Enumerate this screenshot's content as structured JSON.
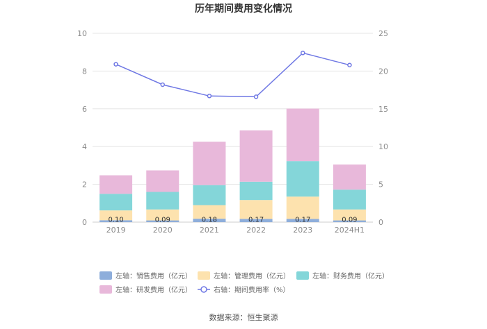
{
  "chart_data": {
    "type": "bar",
    "stacked": true,
    "title": "历年期间费用变化情况",
    "categories": [
      "2019",
      "2020",
      "2021",
      "2022",
      "2023",
      "2024H1"
    ],
    "left_axis": {
      "ylim": [
        0,
        10
      ],
      "ticks": [
        "0",
        "2",
        "4",
        "6",
        "8",
        "10"
      ]
    },
    "right_axis": {
      "ylim": [
        0,
        25
      ],
      "ticks": [
        "0",
        "5",
        "10",
        "15",
        "20",
        "25"
      ]
    },
    "grid": true,
    "legend_position": "bottom",
    "series": [
      {
        "name": "左轴：销售费用（亿元）",
        "axis": "left",
        "color": "#8eaedb",
        "values": [
          0.1,
          0.09,
          0.18,
          0.17,
          0.17,
          0.09
        ],
        "labels": [
          "0.10",
          "0.09",
          "0.18",
          "0.17",
          "0.17",
          "0.09"
        ]
      },
      {
        "name": "左轴：管理费用（亿元）",
        "axis": "left",
        "color": "#fde2ae",
        "values": [
          0.52,
          0.58,
          0.72,
          1.0,
          1.18,
          0.58
        ]
      },
      {
        "name": "左轴：财务费用（亿元）",
        "axis": "left",
        "color": "#84d6d9",
        "values": [
          0.88,
          0.93,
          1.06,
          0.97,
          1.88,
          1.05
        ]
      },
      {
        "name": "左轴：研发费用（亿元）",
        "axis": "left",
        "color": "#e8b8da",
        "values": [
          0.98,
          1.14,
          2.3,
          2.72,
          2.78,
          1.33
        ]
      },
      {
        "name": "右轴：期间费用率（%）",
        "axis": "right",
        "type": "line",
        "color": "#6f78e4",
        "values": [
          20.9,
          18.2,
          16.7,
          16.6,
          22.4,
          20.8
        ]
      }
    ]
  },
  "source": "数据来源：恒生聚源"
}
